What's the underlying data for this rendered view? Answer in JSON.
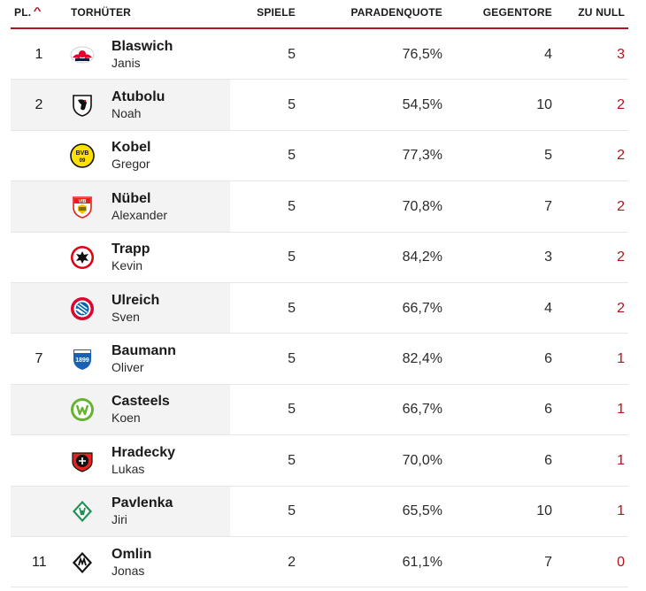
{
  "header": {
    "pl": "PL.",
    "name": "TORHÜTER",
    "spiele": "SPIELE",
    "quote": "PARADENQUOTE",
    "gegentore": "GEGENTORE",
    "zunull": "ZU NULL"
  },
  "colors": {
    "accent": "#b0141c",
    "row_shade": "#f3f3f3",
    "separator": "#e6e6e6"
  },
  "rows": [
    {
      "pl": "1",
      "last": "Blaswich",
      "first": "Janis",
      "spiele": "5",
      "quote": "76,5%",
      "gegentore": "4",
      "zunull": "3",
      "club_icon": "rb-leipzig-logo-icon",
      "shaded": false
    },
    {
      "pl": "2",
      "last": "Atubolu",
      "first": "Noah",
      "spiele": "5",
      "quote": "54,5%",
      "gegentore": "10",
      "zunull": "2",
      "club_icon": "sc-freiburg-logo-icon",
      "shaded": true
    },
    {
      "pl": "",
      "last": "Kobel",
      "first": "Gregor",
      "spiele": "5",
      "quote": "77,3%",
      "gegentore": "5",
      "zunull": "2",
      "club_icon": "borussia-dortmund-logo-icon",
      "shaded": false
    },
    {
      "pl": "",
      "last": "Nübel",
      "first": "Alexander",
      "spiele": "5",
      "quote": "70,8%",
      "gegentore": "7",
      "zunull": "2",
      "club_icon": "vfb-stuttgart-logo-icon",
      "shaded": true
    },
    {
      "pl": "",
      "last": "Trapp",
      "first": "Kevin",
      "spiele": "5",
      "quote": "84,2%",
      "gegentore": "3",
      "zunull": "2",
      "club_icon": "eintracht-frankfurt-logo-icon",
      "shaded": false
    },
    {
      "pl": "",
      "last": "Ulreich",
      "first": "Sven",
      "spiele": "5",
      "quote": "66,7%",
      "gegentore": "4",
      "zunull": "2",
      "club_icon": "fc-bayern-logo-icon",
      "shaded": true
    },
    {
      "pl": "7",
      "last": "Baumann",
      "first": "Oliver",
      "spiele": "5",
      "quote": "82,4%",
      "gegentore": "6",
      "zunull": "1",
      "club_icon": "tsg-hoffenheim-logo-icon",
      "shaded": false
    },
    {
      "pl": "",
      "last": "Casteels",
      "first": "Koen",
      "spiele": "5",
      "quote": "66,7%",
      "gegentore": "6",
      "zunull": "1",
      "club_icon": "vfl-wolfsburg-logo-icon",
      "shaded": true
    },
    {
      "pl": "",
      "last": "Hradecky",
      "first": "Lukas",
      "spiele": "5",
      "quote": "70,0%",
      "gegentore": "6",
      "zunull": "1",
      "club_icon": "bayer-leverkusen-logo-icon",
      "shaded": false
    },
    {
      "pl": "",
      "last": "Pavlenka",
      "first": "Jiri",
      "spiele": "5",
      "quote": "65,5%",
      "gegentore": "10",
      "zunull": "1",
      "club_icon": "werder-bremen-logo-icon",
      "shaded": true
    },
    {
      "pl": "11",
      "last": "Omlin",
      "first": "Jonas",
      "spiele": "2",
      "quote": "61,1%",
      "gegentore": "7",
      "zunull": "0",
      "club_icon": "borussia-mgladbach-logo-icon",
      "shaded": false
    }
  ]
}
